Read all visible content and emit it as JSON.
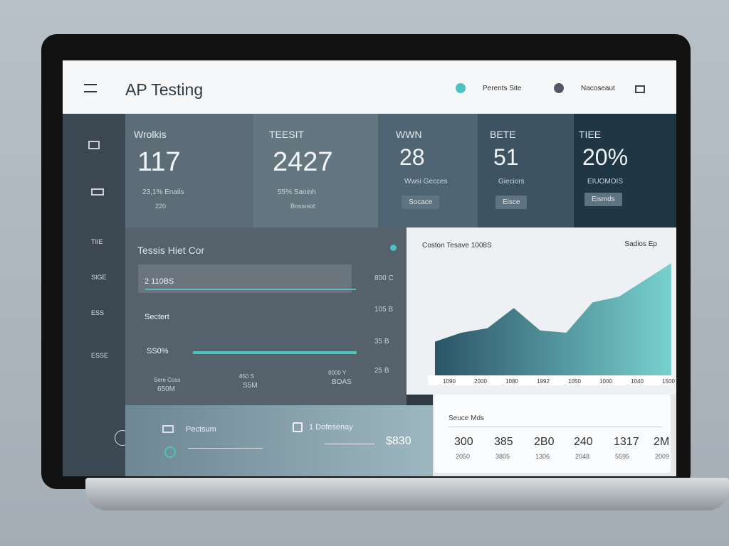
{
  "header": {
    "title": "AP Testing",
    "links": [
      "Perents Site",
      "Nacoseaut"
    ]
  },
  "sidebar": {
    "items": [
      "TIIE",
      "SIGE",
      "ESS",
      "ESSE"
    ]
  },
  "stats": [
    {
      "label": "Wrolkis",
      "value": "117",
      "note": "23,1% Enails",
      "sub": "220"
    },
    {
      "label": "TEESIT",
      "value": "2427",
      "note": "55% Saoinh",
      "sub": "Bossniot"
    },
    {
      "label": "WWN",
      "value": "28",
      "note": "Wwsi Gecces",
      "button": "Socace"
    },
    {
      "label": "BETE",
      "value": "51",
      "note": "Gieciors",
      "button": "Eisce"
    },
    {
      "label": "TIEE",
      "value": "20%",
      "note": "EIUOMOIS",
      "button": "Eismds"
    }
  ],
  "test_panel": {
    "title": "Tessis Hiet Cor",
    "rows": [
      "2 110BS",
      "Sectert",
      "SS0%"
    ],
    "side_labels": [
      "800 C",
      "105 B",
      "35 B",
      "25 B"
    ],
    "footer": [
      [
        "Sere Coss",
        "650M"
      ],
      [
        "850 S",
        "S5M"
      ],
      [
        "8000 Y",
        "BOAS"
      ]
    ]
  },
  "area_chart": {
    "title": "Coston Tesave 1008S",
    "subtitle": "Sadios Ep",
    "ylim": [
      0,
      100
    ],
    "values": [
      30,
      38,
      42,
      60,
      40,
      38,
      65,
      70,
      85,
      100
    ],
    "x_labels": [
      "1090",
      "2000",
      "1080",
      "1992",
      "1050",
      "1000",
      "1040",
      "1500"
    ]
  },
  "summary": {
    "title": "Seuce Mds",
    "values": [
      "300",
      "385",
      "2B0",
      "240",
      "1317",
      "2M"
    ],
    "subs": [
      "2050",
      "3805",
      "1306",
      "2048",
      "5595",
      "2009"
    ]
  },
  "bottom": {
    "left": "Pectsum",
    "middle": "1 Dofesenay",
    "amount": "$830"
  }
}
